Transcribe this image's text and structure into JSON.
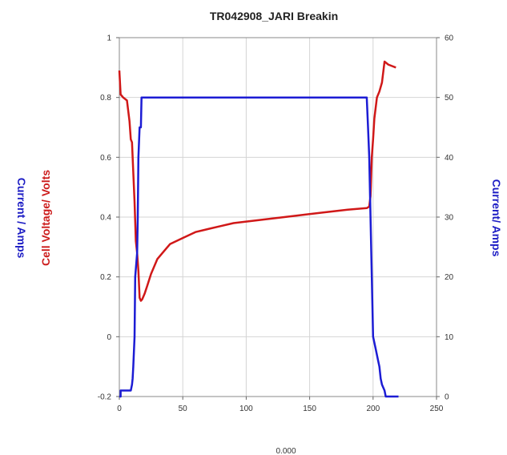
{
  "chart_data": {
    "type": "line",
    "title": "TR042908_JARI Breakin",
    "xlabel": "0.000",
    "xlim": [
      0,
      250
    ],
    "x_ticks": [
      "0",
      "50",
      "100",
      "150",
      "200",
      "250"
    ],
    "y_left": {
      "labels": [
        "Current / Amps",
        "Cell Voltage/ Volts"
      ],
      "label_colors": [
        "#1c1cc4",
        "#cc1c1c"
      ],
      "ylim": [
        -0.2,
        1
      ],
      "ticks": [
        "-0.2",
        "0",
        "0.2",
        "0.4",
        "0.6",
        "0.8",
        "1"
      ]
    },
    "y_right": {
      "label": "Current/ Amps",
      "label_color": "#1c1cc4",
      "ylim": [
        0,
        60
      ],
      "ticks": [
        "0",
        "10",
        "20",
        "30",
        "40",
        "50",
        "60"
      ]
    },
    "grid": true,
    "series": [
      {
        "axis": "left",
        "color": "#d01818",
        "x": [
          0,
          1,
          3,
          6,
          8,
          9,
          10,
          12,
          13,
          14,
          15,
          16,
          17,
          18,
          20,
          22,
          25,
          30,
          35,
          40,
          50,
          60,
          70,
          80,
          90,
          100,
          120,
          140,
          160,
          180,
          195,
          197,
          198,
          199,
          200,
          201,
          203,
          205,
          207,
          209,
          212,
          215,
          218
        ],
        "y": [
          0.89,
          0.81,
          0.8,
          0.79,
          0.72,
          0.66,
          0.65,
          0.45,
          0.32,
          0.28,
          0.22,
          0.13,
          0.12,
          0.125,
          0.145,
          0.17,
          0.21,
          0.26,
          0.285,
          0.31,
          0.33,
          0.35,
          0.36,
          0.37,
          0.38,
          0.385,
          0.395,
          0.405,
          0.415,
          0.425,
          0.43,
          0.435,
          0.47,
          0.6,
          0.66,
          0.73,
          0.8,
          0.82,
          0.85,
          0.92,
          0.91,
          0.905,
          0.9
        ]
      },
      {
        "axis": "right",
        "color": "#1c1cd4",
        "x": [
          0,
          1,
          1,
          9,
          10,
          10.5,
          11,
          12,
          12.5,
          14,
          14.5,
          15,
          16,
          17,
          17.5,
          195,
          196,
          197,
          198,
          199,
          200,
          202,
          204,
          205,
          206,
          207,
          209,
          210,
          220
        ],
        "y": [
          0,
          0,
          1,
          1,
          2,
          3,
          5,
          10,
          20,
          24,
          30,
          40,
          45,
          45,
          50,
          50,
          45,
          40,
          30,
          20,
          10,
          8,
          6,
          5,
          3,
          2,
          1,
          0,
          0
        ]
      }
    ]
  }
}
